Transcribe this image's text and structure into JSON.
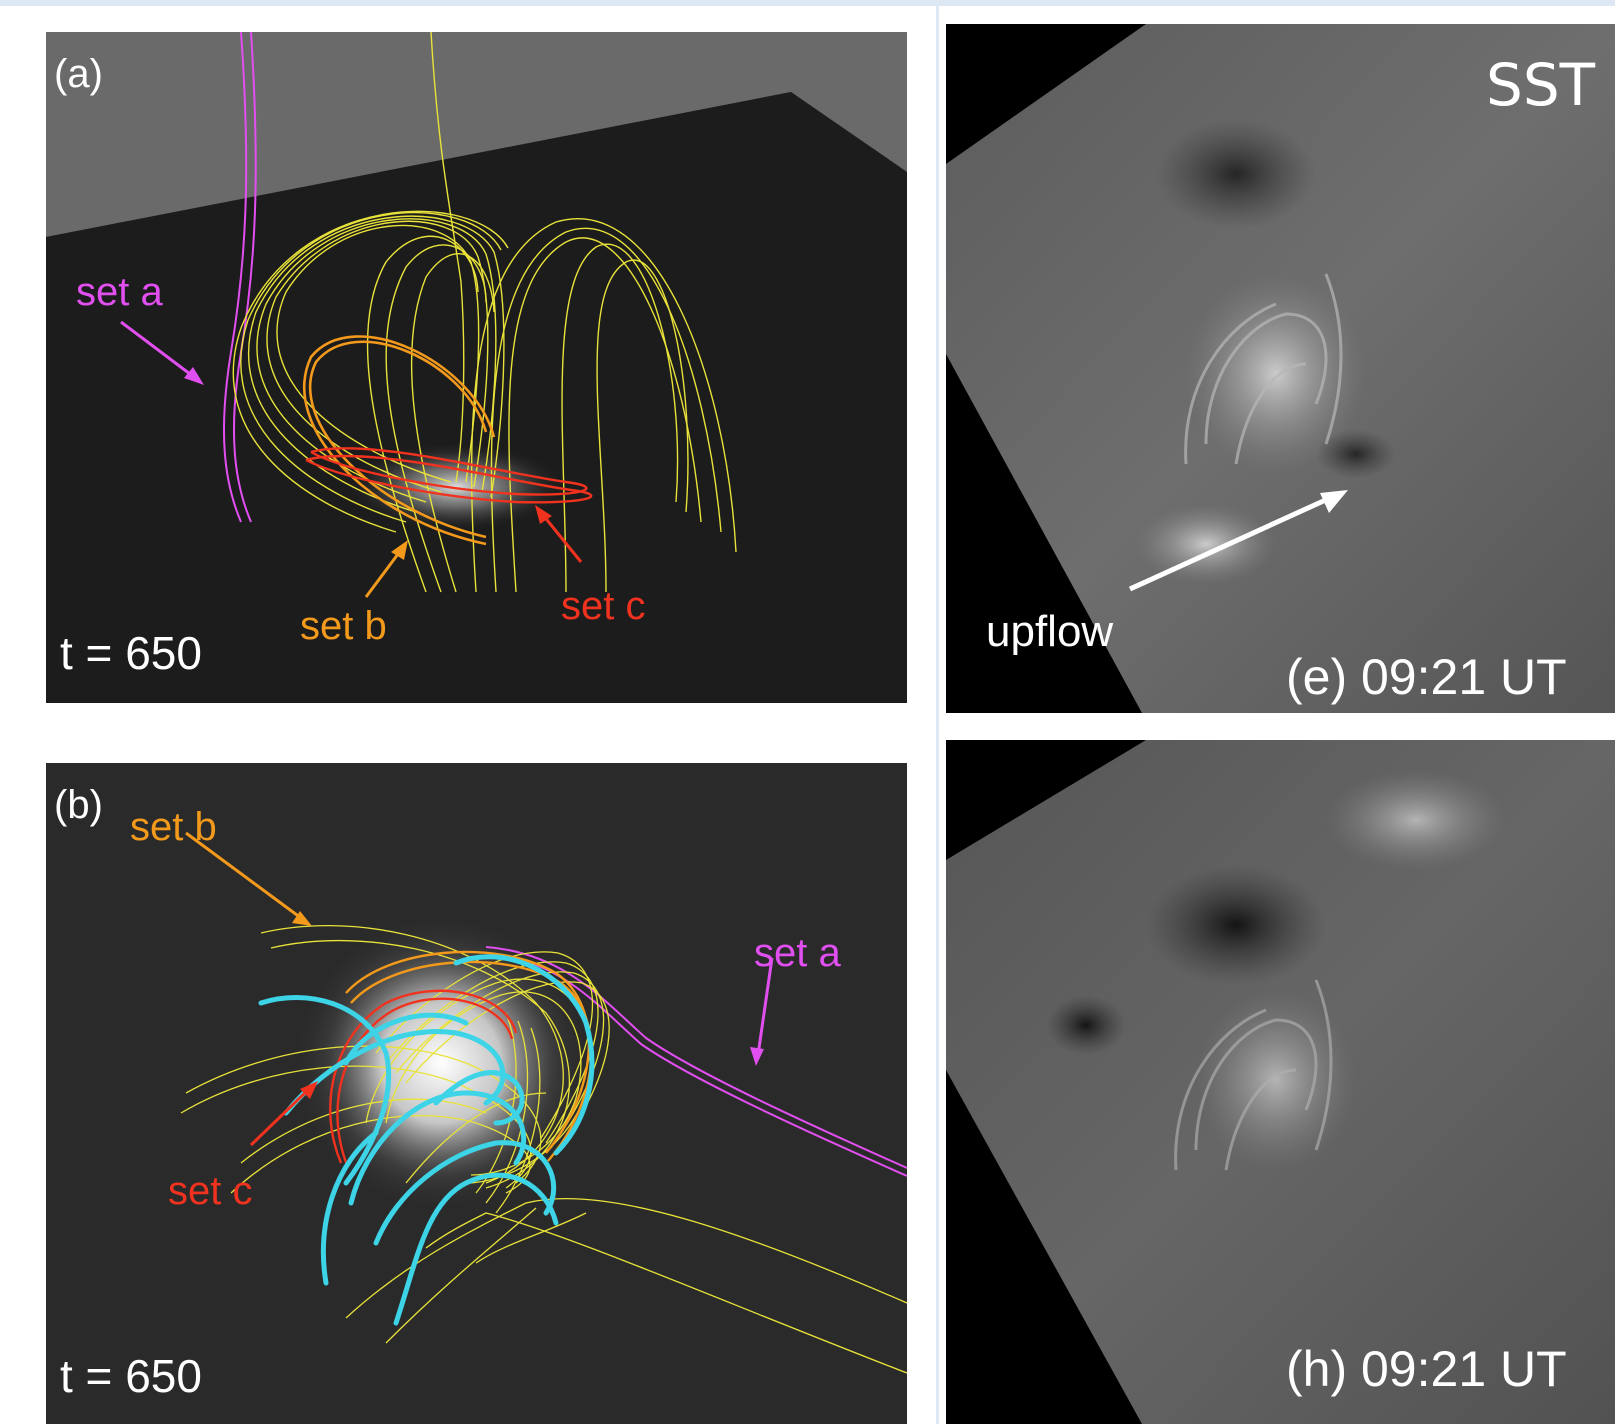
{
  "panel_a": {
    "label": "(a)",
    "set_a": "set a",
    "set_b": "set b",
    "set_c": "set c",
    "time": "t = 650"
  },
  "panel_b": {
    "label": "(b)",
    "set_a": "set a",
    "set_b": "set b",
    "set_c": "set c",
    "time": "t = 650"
  },
  "panel_e": {
    "instrument": "SST",
    "upflow": "upflow",
    "caption": "(e) 09:21 UT"
  },
  "panel_h": {
    "caption": "(h) 09:21 UT"
  },
  "colors": {
    "set_a": "#e24ff0",
    "set_b": "#f39a1c",
    "set_c": "#f0321e",
    "field_lines": "#e8e23a",
    "tubes": "#3cd4e6"
  }
}
